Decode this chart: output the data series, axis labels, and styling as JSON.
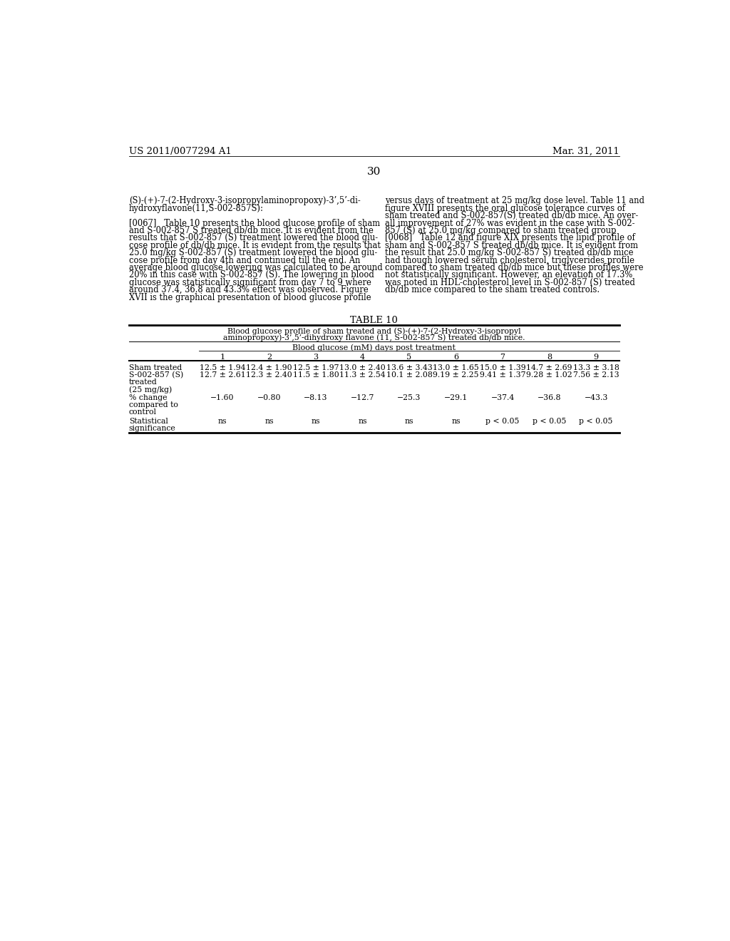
{
  "page_number": "30",
  "patent_number": "US 2011/0077294 A1",
  "patent_date": "Mar. 31, 2011",
  "left_texts": [
    "(S)-(+)-7-(2-Hydroxy-3-isopropylaminopropoxy)-3’,5’-di-",
    "hydroxyflavone(11,S-002-857S):",
    "",
    "[0067]   Table 10 presents the blood glucose profile of sham",
    "and S-002-857 S treated db/db mice. It is evident from the",
    "results that S-002-857 (S) treatment lowered the blood glu-",
    "cose profile of db/db mice. It is evident from the results that",
    "25.0 mg/kg S-002-857 (S) treatment lowered the blood glu-",
    "cose profile from day 4th and continued till the end. An",
    "average blood glucose lowering was calculated to be around",
    "20% in this case with S-002-857 (S). The lowering in blood",
    "glucose was statistically significant from day 7 to 9 where",
    "around 37.4, 36.8 and 43.3% effect was observed. Figure",
    "XVII is the graphical presentation of blood glucose profile"
  ],
  "right_texts": [
    "versus days of treatment at 25 mg/kg dose level. Table 11 and",
    "figure XVIII presents the oral glucose tolerance curves of",
    "sham treated and S-002-857(S) treated db/db mice. An over-",
    "all improvement of 27% was evident in the case with S-002-",
    "857 (S) at 25.0 mg/kg compared to sham treated group",
    "[0068]   Table 12 and figure XIX presents the lipid profile of",
    "sham and S-002-857 S treated db/db mice. It is evident from",
    "the result that 25.0 mg/kg S-002-857 S) treated db/db mice",
    "had though lowered serum cholesterol, triglycerides profile",
    "compared to sham treated db/db mice but these profiles were",
    "not statistically significant. However, an elevation of 17.3%",
    "was noted in HDL-cholesterol level in S-002-857 (S) treated",
    "db/db mice compared to the sham treated controls."
  ],
  "table_title": "TABLE 10",
  "table_subtitle_line1": "Blood glucose profile of sham treated and (S)-(+)-7-(2-Hydroxy-3-isopropyl",
  "table_subtitle_line2": "aminopropoxy)-3’,5’-dihydroxy flavone (11, S-002-857 S) treated db/db mice.",
  "col_header_span": "Blood glucose (mM) days post treatment",
  "col_days": [
    "1",
    "2",
    "3",
    "4",
    "5",
    "6",
    "7",
    "8",
    "9"
  ],
  "sham_values": [
    "12.5 ± 1.94",
    "12.4 ± 1.90",
    "12.5 ± 1.97",
    "13.0 ± 2.40",
    "13.6 ± 3.43",
    "13.0 ± 1.65",
    "15.0 ± 1.39",
    "14.7 ± 2.69",
    "13.3 ± 3.18"
  ],
  "treated_values": [
    "12.7 ± 2.61",
    "12.3 ± 2.40",
    "11.5 ± 1.80",
    "11.3 ± 2.54",
    "10.1 ± 2.08",
    "9.19 ± 2.25",
    "9.41 ± 1.37",
    "9.28 ± 1.02",
    "7.56 ± 2.13"
  ],
  "pct_change": [
    "−1.60",
    "−0.80",
    "−8.13",
    "−12.7",
    "−25.3",
    "−29.1",
    "−37.4",
    "−36.8",
    "−43.3"
  ],
  "stat_sig": [
    "ns",
    "ns",
    "ns",
    "ns",
    "ns",
    "ns",
    "p < 0.05",
    "p < 0.05",
    "p < 0.05"
  ],
  "bg_color": "#ffffff",
  "text_color": "#000000"
}
